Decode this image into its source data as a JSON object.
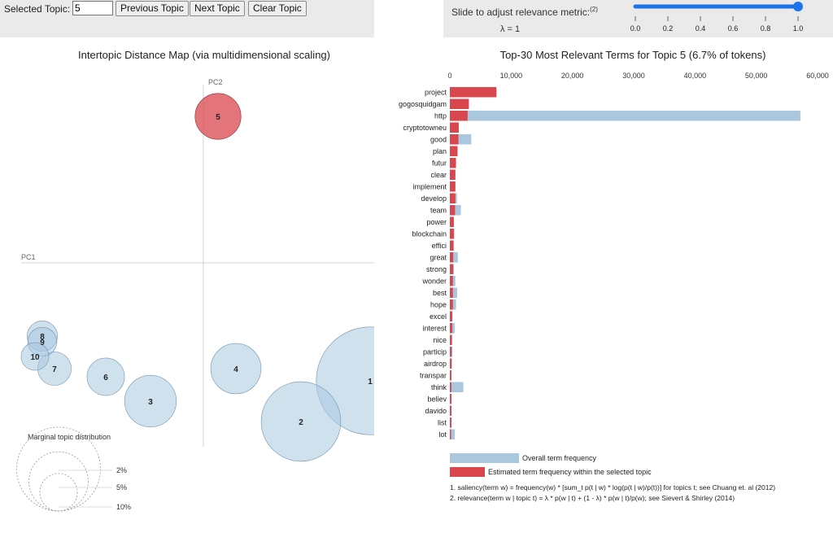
{
  "controls": {
    "selected_topic_label": "Selected Topic:",
    "selected_topic_value": "5",
    "prev_label": "Previous Topic",
    "next_label": "Next Topic",
    "clear_label": "Clear Topic"
  },
  "slider": {
    "label": "Slide to adjust relevance metric:",
    "footnote_ref": "(2)",
    "lambda_text": "λ = 1",
    "value": 1.0,
    "ticks": [
      "0.0",
      "0.2",
      "0.4",
      "0.6",
      "0.8",
      "1.0"
    ],
    "color": "#1a73e8"
  },
  "chart_data": [
    {
      "type": "scatter",
      "title": "Intertopic Distance Map (via multidimensional scaling)",
      "xlabel": "PC1",
      "ylabel": "PC2",
      "selected_topic": 5,
      "topics": [
        {
          "label": "1",
          "pc1": 0.205,
          "pc2": -0.145,
          "size_pct": 16.5
        },
        {
          "label": "2",
          "pc1": 0.12,
          "pc2": -0.195,
          "size_pct": 9.0
        },
        {
          "label": "3",
          "pc1": -0.065,
          "pc2": -0.17,
          "size_pct": 3.8
        },
        {
          "label": "4",
          "pc1": 0.04,
          "pc2": -0.13,
          "size_pct": 3.6
        },
        {
          "label": "5",
          "pc1": 0.018,
          "pc2": 0.18,
          "size_pct": 3.0
        },
        {
          "label": "6",
          "pc1": -0.12,
          "pc2": -0.14,
          "size_pct": 2.0
        },
        {
          "label": "7",
          "pc1": -0.183,
          "pc2": -0.13,
          "size_pct": 1.6
        },
        {
          "label": "8",
          "pc1": -0.198,
          "pc2": -0.09,
          "size_pct": 1.3
        },
        {
          "label": "9",
          "pc1": -0.198,
          "pc2": -0.097,
          "size_pct": 1.2
        },
        {
          "label": "10",
          "pc1": -0.207,
          "pc2": -0.115,
          "size_pct": 1.1
        }
      ],
      "colors": {
        "default": "#a9c8e0",
        "selected": "#d9464d"
      }
    },
    {
      "type": "bar",
      "title": "Top-30 Most Relevant Terms for Topic 5 (6.7% of tokens)",
      "xlim": [
        0,
        60000
      ],
      "xticks": [
        "0",
        "10,000",
        "20,000",
        "30,000",
        "40,000",
        "50,000",
        "60,000"
      ],
      "xtick_values": [
        0,
        10000,
        20000,
        30000,
        40000,
        50000,
        60000
      ],
      "categories": [
        "project",
        "gogosquidgam",
        "http",
        "cryptotowneu",
        "good",
        "plan",
        "futur",
        "clear",
        "implement",
        "develop",
        "team",
        "power",
        "blockchain",
        "effici",
        "great",
        "strong",
        "wonder",
        "best",
        "hope",
        "excel",
        "interest",
        "nice",
        "particip",
        "airdrop",
        "transpar",
        "think",
        "believ",
        "davido",
        "list",
        "lot"
      ],
      "series": [
        {
          "name": "Overall term frequency",
          "values": [
            7600,
            3100,
            57200,
            1450,
            3500,
            1250,
            1000,
            900,
            900,
            1150,
            1800,
            650,
            750,
            650,
            1300,
            650,
            900,
            1200,
            1000,
            400,
            800,
            350,
            400,
            300,
            250,
            2200,
            300,
            300,
            300,
            800
          ]
        },
        {
          "name": "Estimated term frequency within the selected topic",
          "values": [
            7600,
            3100,
            2900,
            1450,
            1400,
            1250,
            1000,
            900,
            900,
            900,
            850,
            650,
            650,
            600,
            550,
            550,
            500,
            500,
            500,
            400,
            400,
            350,
            300,
            300,
            250,
            250,
            250,
            250,
            250,
            200
          ]
        }
      ],
      "colors": {
        "overall": "#a9c8e0",
        "topic": "#d9464d"
      }
    }
  ],
  "marginal": {
    "title": "Marginal topic distribution",
    "labels": [
      "2%",
      "5%",
      "10%"
    ]
  },
  "legend": {
    "overall": "Overall term frequency",
    "topic": "Estimated term frequency within the selected topic"
  },
  "footnotes": {
    "note1": "1. saliency(term w) = frequency(w) * [sum_t p(t | w) * log(p(t | w)/p(t))] for topics t; see Chuang et. al (2012)",
    "note2": "2. relevance(term w | topic t) = λ * p(w | t) + (1 - λ) * p(w | t)/p(w); see Sievert & Shirley (2014)"
  }
}
